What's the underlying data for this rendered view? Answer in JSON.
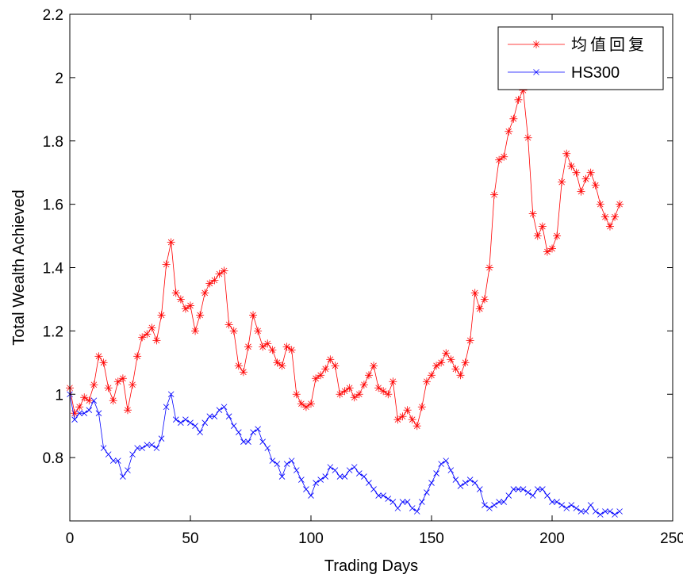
{
  "chart_data": {
    "type": "line",
    "xlabel": "Trading Days",
    "ylabel": "Total Wealth Achieved",
    "xlim": [
      0,
      250
    ],
    "ylim": [
      0.6,
      2.2
    ],
    "xticks": [
      0,
      50,
      100,
      150,
      200,
      250
    ],
    "yticks": [
      0.8,
      1,
      1.2,
      1.4,
      1.6,
      1.8,
      2,
      2.2
    ],
    "ytick_labels": [
      "0.8",
      "1",
      "1.2",
      "1.4",
      "1.6",
      "1.8",
      "2",
      "2.2"
    ],
    "xtick_labels": [
      "0",
      "50",
      "100",
      "150",
      "200",
      "250"
    ],
    "grid": false,
    "legend_position": "top-right",
    "series": [
      {
        "name": "均值回复",
        "color": "#ff0000",
        "marker": "asterisk",
        "x": [
          0,
          2,
          4,
          6,
          8,
          10,
          12,
          14,
          16,
          18,
          20,
          22,
          24,
          26,
          28,
          30,
          32,
          34,
          36,
          38,
          40,
          42,
          44,
          46,
          48,
          50,
          52,
          54,
          56,
          58,
          60,
          62,
          64,
          66,
          68,
          70,
          72,
          74,
          76,
          78,
          80,
          82,
          84,
          86,
          88,
          90,
          92,
          94,
          96,
          98,
          100,
          102,
          104,
          106,
          108,
          110,
          112,
          114,
          116,
          118,
          120,
          122,
          124,
          126,
          128,
          130,
          132,
          134,
          136,
          138,
          140,
          142,
          144,
          146,
          148,
          150,
          152,
          154,
          156,
          158,
          160,
          162,
          164,
          166,
          168,
          170,
          172,
          174,
          176,
          178,
          180,
          182,
          184,
          186,
          188,
          190,
          192,
          194,
          196,
          198,
          200,
          202,
          204,
          206,
          208,
          210,
          212,
          214,
          216,
          218,
          220,
          222,
          224,
          226,
          228
        ],
        "values": [
          1.02,
          0.94,
          0.96,
          0.99,
          0.98,
          1.03,
          1.12,
          1.1,
          1.02,
          0.98,
          1.04,
          1.05,
          0.95,
          1.03,
          1.12,
          1.18,
          1.19,
          1.21,
          1.17,
          1.25,
          1.41,
          1.48,
          1.32,
          1.3,
          1.27,
          1.28,
          1.2,
          1.25,
          1.32,
          1.35,
          1.36,
          1.38,
          1.39,
          1.22,
          1.2,
          1.09,
          1.07,
          1.15,
          1.25,
          1.2,
          1.15,
          1.16,
          1.14,
          1.1,
          1.09,
          1.15,
          1.14,
          1.0,
          0.97,
          0.96,
          0.97,
          1.05,
          1.06,
          1.08,
          1.11,
          1.09,
          1.0,
          1.01,
          1.02,
          0.99,
          1.0,
          1.03,
          1.06,
          1.09,
          1.02,
          1.01,
          1.0,
          1.04,
          0.92,
          0.93,
          0.95,
          0.92,
          0.9,
          0.96,
          1.04,
          1.06,
          1.09,
          1.1,
          1.13,
          1.11,
          1.08,
          1.06,
          1.1,
          1.17,
          1.32,
          1.27,
          1.3,
          1.4,
          1.63,
          1.74,
          1.75,
          1.83,
          1.87,
          1.93,
          1.96,
          1.81,
          1.57,
          1.5,
          1.53,
          1.45,
          1.46,
          1.5,
          1.67,
          1.76,
          1.72,
          1.7,
          1.64,
          1.68,
          1.7,
          1.66,
          1.6,
          1.56,
          1.53,
          1.56,
          1.6
        ]
      },
      {
        "name": "HS300",
        "color": "#0000ff",
        "marker": "x",
        "x": [
          0,
          2,
          4,
          6,
          8,
          10,
          12,
          14,
          16,
          18,
          20,
          22,
          24,
          26,
          28,
          30,
          32,
          34,
          36,
          38,
          40,
          42,
          44,
          46,
          48,
          50,
          52,
          54,
          56,
          58,
          60,
          62,
          64,
          66,
          68,
          70,
          72,
          74,
          76,
          78,
          80,
          82,
          84,
          86,
          88,
          90,
          92,
          94,
          96,
          98,
          100,
          102,
          104,
          106,
          108,
          110,
          112,
          114,
          116,
          118,
          120,
          122,
          124,
          126,
          128,
          130,
          132,
          134,
          136,
          138,
          140,
          142,
          144,
          146,
          148,
          150,
          152,
          154,
          156,
          158,
          160,
          162,
          164,
          166,
          168,
          170,
          172,
          174,
          176,
          178,
          180,
          182,
          184,
          186,
          188,
          190,
          192,
          194,
          196,
          198,
          200,
          202,
          204,
          206,
          208,
          210,
          212,
          214,
          216,
          218,
          220,
          222,
          224,
          226,
          228
        ],
        "values": [
          1.0,
          0.92,
          0.94,
          0.94,
          0.95,
          0.98,
          0.94,
          0.83,
          0.81,
          0.79,
          0.79,
          0.74,
          0.76,
          0.81,
          0.83,
          0.83,
          0.84,
          0.84,
          0.83,
          0.86,
          0.96,
          1.0,
          0.92,
          0.91,
          0.92,
          0.91,
          0.9,
          0.88,
          0.91,
          0.93,
          0.93,
          0.95,
          0.96,
          0.93,
          0.9,
          0.88,
          0.85,
          0.85,
          0.88,
          0.89,
          0.85,
          0.83,
          0.79,
          0.78,
          0.74,
          0.78,
          0.79,
          0.76,
          0.73,
          0.7,
          0.68,
          0.72,
          0.73,
          0.74,
          0.77,
          0.76,
          0.74,
          0.74,
          0.76,
          0.77,
          0.75,
          0.74,
          0.72,
          0.7,
          0.68,
          0.68,
          0.67,
          0.66,
          0.64,
          0.66,
          0.66,
          0.64,
          0.63,
          0.66,
          0.69,
          0.72,
          0.75,
          0.78,
          0.79,
          0.76,
          0.73,
          0.71,
          0.72,
          0.73,
          0.72,
          0.7,
          0.65,
          0.64,
          0.65,
          0.66,
          0.66,
          0.68,
          0.7,
          0.7,
          0.7,
          0.69,
          0.68,
          0.7,
          0.7,
          0.68,
          0.66,
          0.66,
          0.65,
          0.64,
          0.65,
          0.64,
          0.63,
          0.63,
          0.65,
          0.63,
          0.62,
          0.63,
          0.63,
          0.62,
          0.63
        ]
      }
    ]
  }
}
